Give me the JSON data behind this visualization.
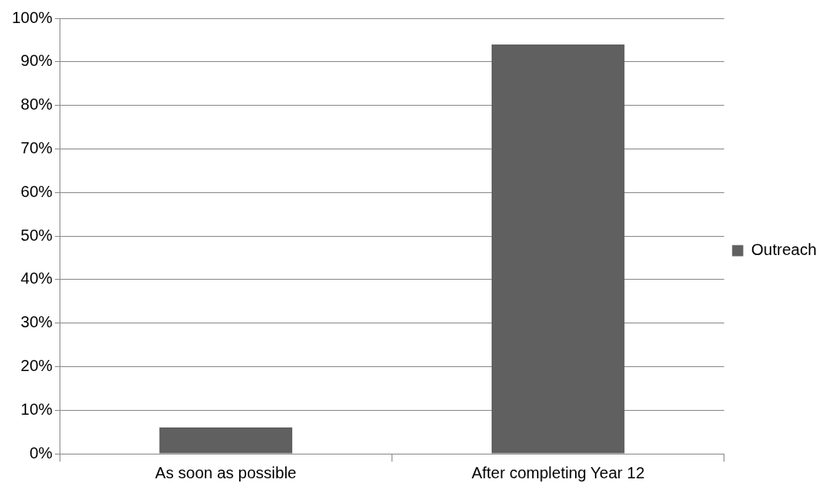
{
  "chart_data": {
    "type": "bar",
    "categories": [
      "As soon as possible",
      "After completing Year 12"
    ],
    "series": [
      {
        "name": "Outreach",
        "color": "#606060",
        "values": [
          6,
          94
        ]
      }
    ],
    "ylim": [
      0,
      100
    ],
    "yticks": [
      {
        "value": 0,
        "label": "0%"
      },
      {
        "value": 10,
        "label": "10%"
      },
      {
        "value": 20,
        "label": "20%"
      },
      {
        "value": 30,
        "label": "30%"
      },
      {
        "value": 40,
        "label": "40%"
      },
      {
        "value": 50,
        "label": "50%"
      },
      {
        "value": 60,
        "label": "60%"
      },
      {
        "value": 70,
        "label": "70%"
      },
      {
        "value": 80,
        "label": "80%"
      },
      {
        "value": 90,
        "label": "90%"
      },
      {
        "value": 100,
        "label": "100%"
      }
    ],
    "grid": "y",
    "legend": "right"
  }
}
